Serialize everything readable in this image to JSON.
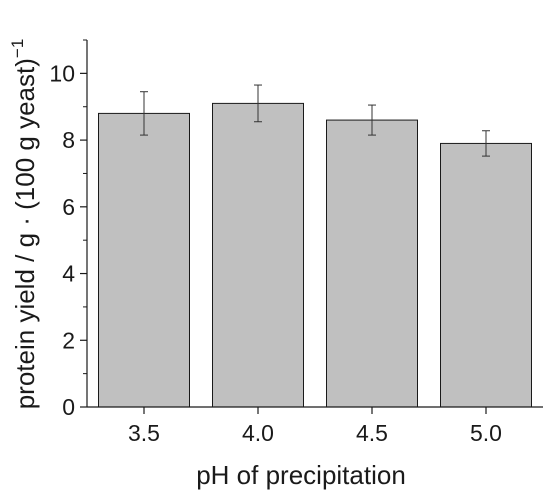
{
  "chart_data": {
    "type": "bar",
    "title": "",
    "xlabel": "pH of precipitation",
    "ylabel": "protein yield / g · (100 g yeast)",
    "ylabel_superscript": "−1",
    "categories": [
      "3.5",
      "4.0",
      "4.5",
      "5.0"
    ],
    "values": [
      8.8,
      9.1,
      8.6,
      7.9
    ],
    "errors": [
      0.65,
      0.55,
      0.45,
      0.38
    ],
    "ylim": [
      0,
      11
    ],
    "yticks": [
      "0",
      "2",
      "4",
      "6",
      "8",
      "10"
    ],
    "grid": false,
    "bar_color": "#c0c0c0",
    "bar_edge_color": "#1a1a1a"
  }
}
